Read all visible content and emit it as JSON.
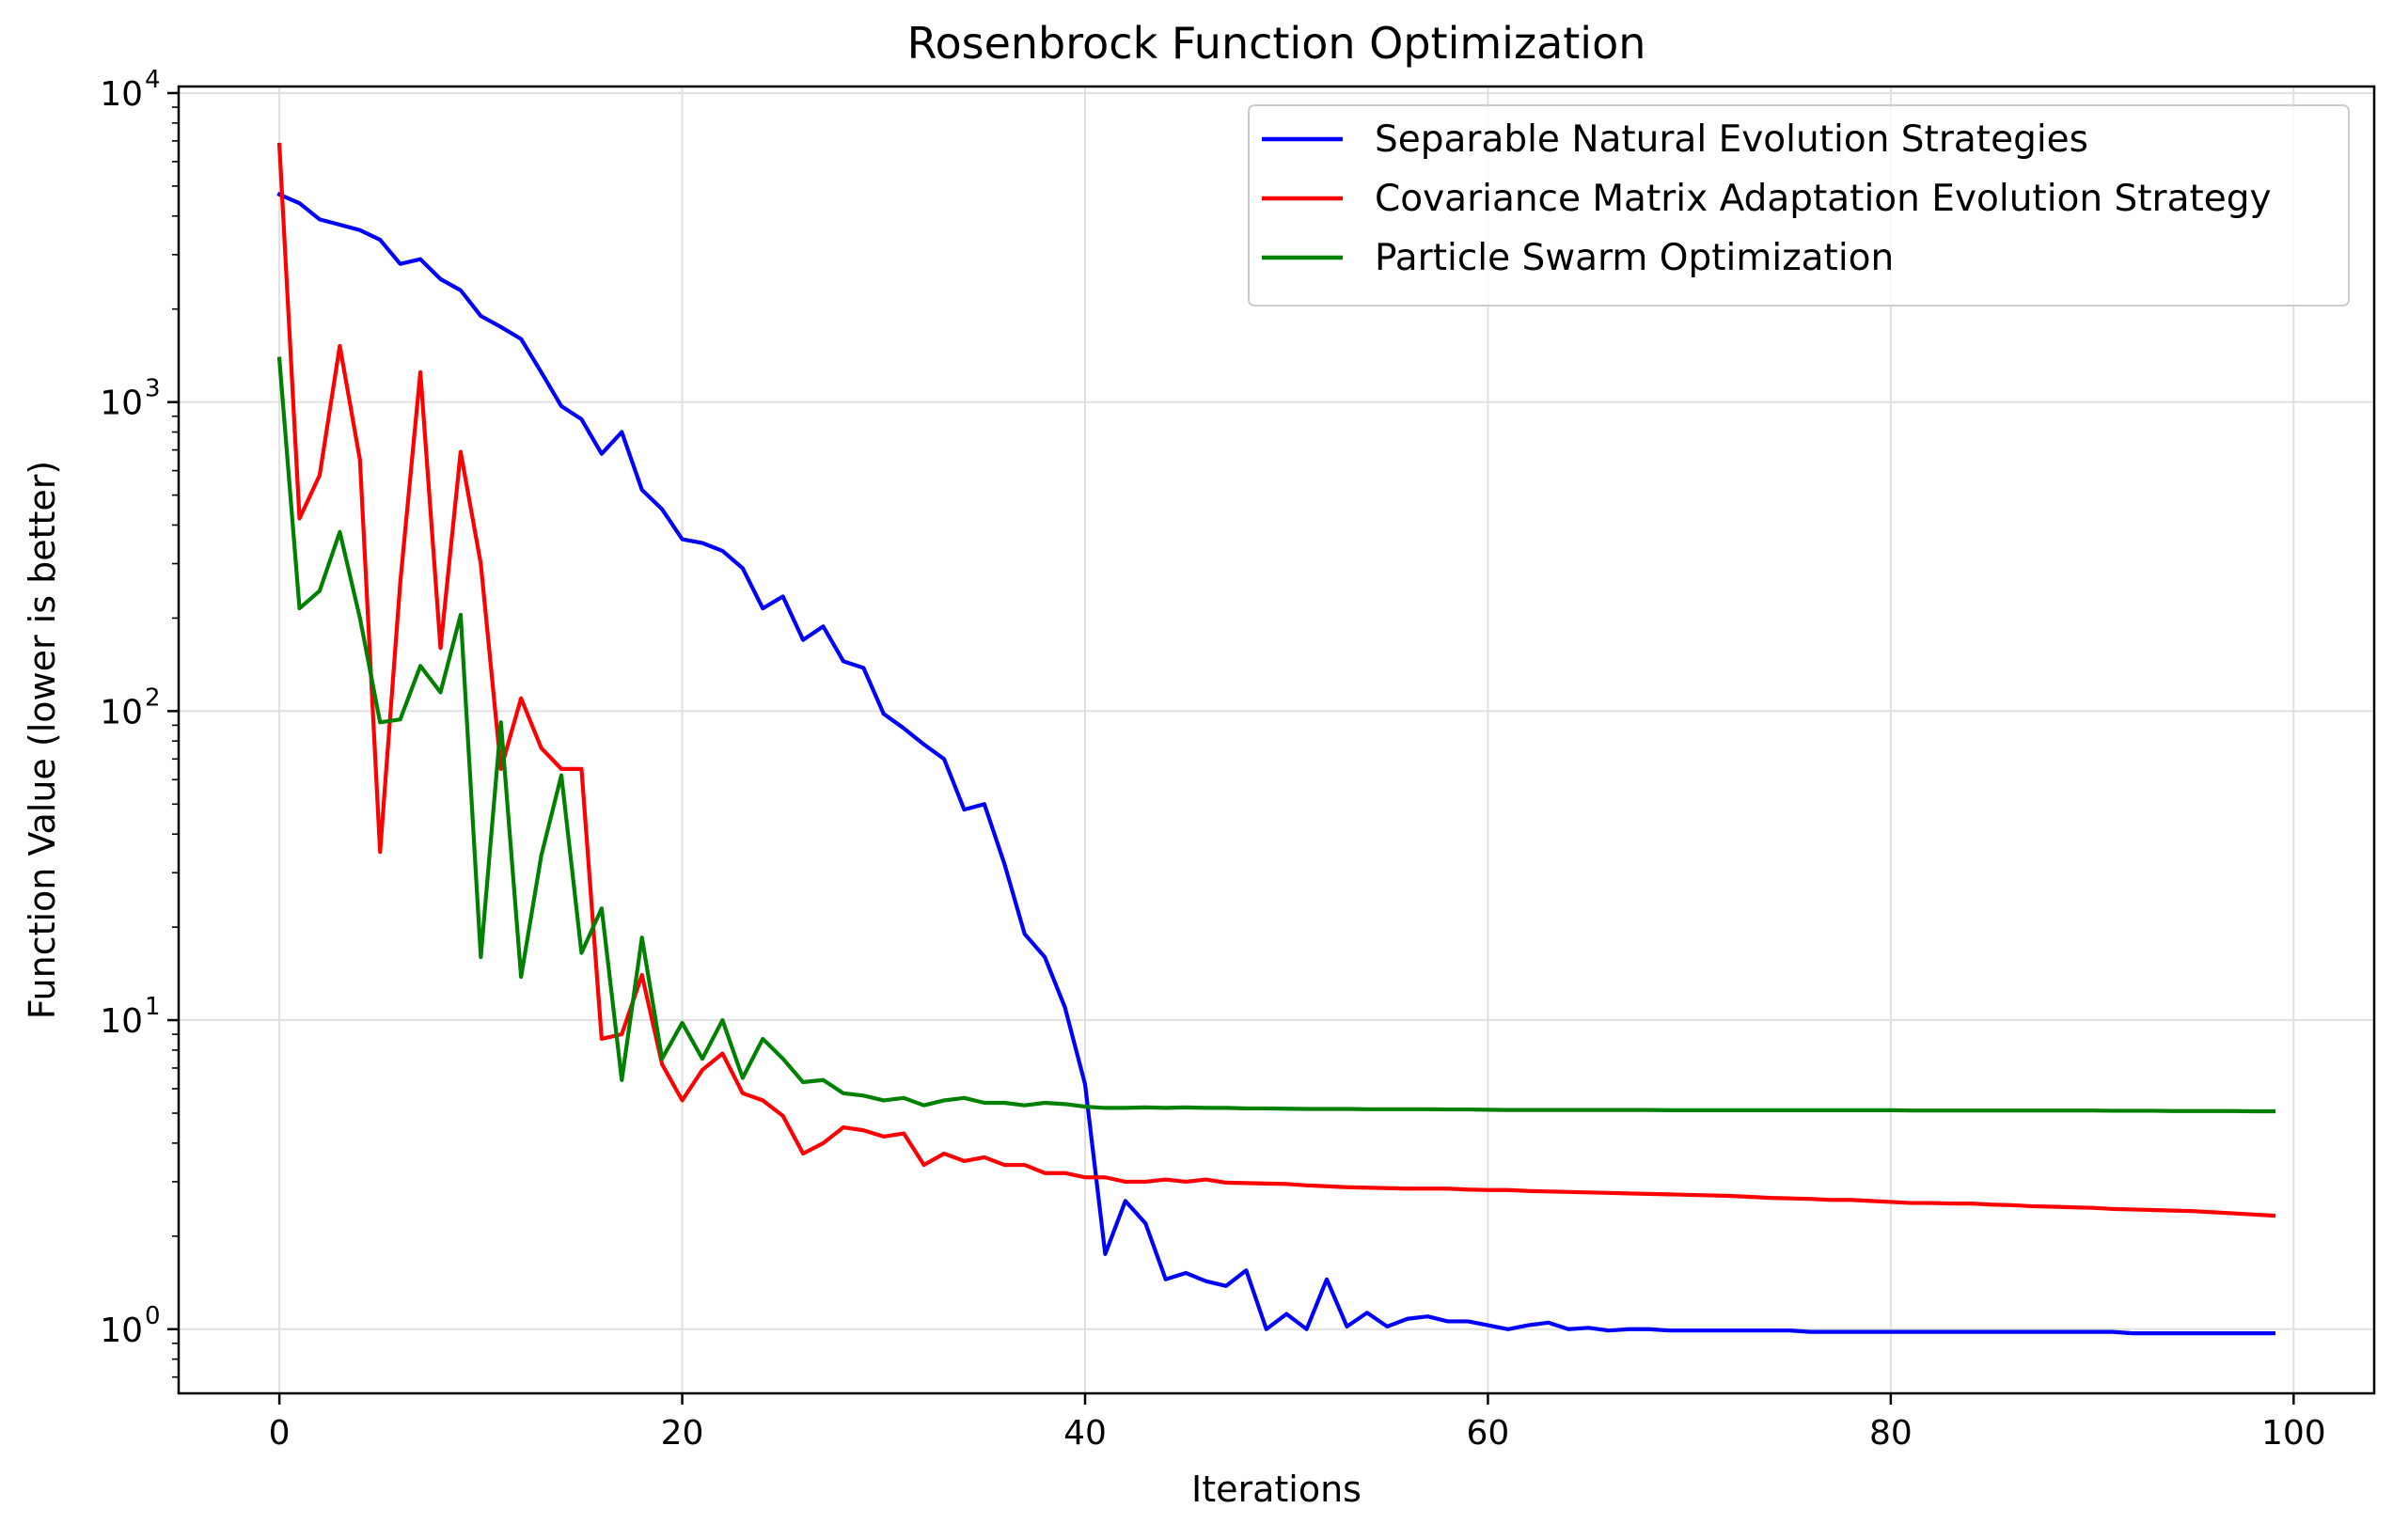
{
  "chart_data": {
    "type": "line",
    "title": "Rosenbrock Function Optimization",
    "xlabel": "Iterations",
    "ylabel": "Function Value (lower is better)",
    "xscale": "linear",
    "yscale": "log",
    "xlim": [
      -5,
      104
    ],
    "ylim": [
      0.62,
      10500
    ],
    "xticks": [
      0,
      20,
      40,
      60,
      80,
      100
    ],
    "xtick_labels": [
      "0",
      "20",
      "40",
      "60",
      "80",
      "100"
    ],
    "yticks": [
      1,
      10,
      100,
      1000,
      10000
    ],
    "ytick_labels": [
      {
        "base": "10",
        "exp": "0"
      },
      {
        "base": "10",
        "exp": "1"
      },
      {
        "base": "10",
        "exp": "2"
      },
      {
        "base": "10",
        "exp": "3"
      },
      {
        "base": "10",
        "exp": "4"
      }
    ],
    "grid": true,
    "legend_position": "top-right",
    "series": [
      {
        "name": "Separable Natural Evolution Strategies",
        "color": "#0000ff",
        "values": [
          4700,
          4400,
          3900,
          3750,
          3600,
          3350,
          2800,
          2900,
          2500,
          2300,
          1900,
          1750,
          1600,
          1250,
          970,
          880,
          680,
          800,
          520,
          450,
          360,
          350,
          330,
          290,
          215,
          235,
          170,
          188,
          145,
          138,
          98,
          88,
          78,
          70,
          48,
          50,
          32,
          19,
          16,
          11,
          6.2,
          1.75,
          2.6,
          2.2,
          1.45,
          1.52,
          1.43,
          1.38,
          1.55,
          1.0,
          1.12,
          1.0,
          1.45,
          1.02,
          1.13,
          1.02,
          1.08,
          1.1,
          1.06,
          1.06,
          1.03,
          1.0,
          1.03,
          1.05,
          1.0,
          1.01,
          0.99,
          1.0,
          1.0,
          0.99,
          0.99,
          0.99,
          0.99,
          0.99,
          0.99,
          0.99,
          0.98,
          0.98,
          0.98,
          0.98,
          0.98,
          0.98,
          0.98,
          0.98,
          0.98,
          0.98,
          0.98,
          0.98,
          0.98,
          0.98,
          0.98,
          0.98,
          0.97,
          0.97,
          0.97,
          0.97,
          0.97,
          0.97,
          0.97,
          0.97
        ]
      },
      {
        "name": "Covariance Matrix Adaptation Evolution Strategy",
        "color": "#ff0000",
        "values": [
          6800,
          420,
          580,
          1520,
          650,
          35,
          260,
          1250,
          160,
          690,
          300,
          65,
          110,
          76,
          65,
          65,
          8.7,
          9.0,
          14,
          7.2,
          5.5,
          6.9,
          7.8,
          5.8,
          5.5,
          4.9,
          3.7,
          4.0,
          4.5,
          4.4,
          4.2,
          4.3,
          3.4,
          3.7,
          3.5,
          3.6,
          3.4,
          3.4,
          3.2,
          3.2,
          3.1,
          3.1,
          3.0,
          3.0,
          3.05,
          3.0,
          3.05,
          2.98,
          2.97,
          2.96,
          2.95,
          2.92,
          2.9,
          2.88,
          2.87,
          2.86,
          2.85,
          2.85,
          2.85,
          2.83,
          2.82,
          2.82,
          2.8,
          2.79,
          2.78,
          2.77,
          2.76,
          2.75,
          2.74,
          2.73,
          2.72,
          2.71,
          2.7,
          2.68,
          2.66,
          2.65,
          2.64,
          2.62,
          2.62,
          2.6,
          2.58,
          2.56,
          2.56,
          2.55,
          2.55,
          2.53,
          2.52,
          2.5,
          2.49,
          2.48,
          2.47,
          2.45,
          2.44,
          2.43,
          2.42,
          2.41,
          2.39,
          2.37,
          2.35,
          2.33
        ]
      },
      {
        "name": "Particle Swarm Optimization",
        "color": "#008000",
        "values": [
          1380,
          215,
          245,
          380,
          200,
          92,
          94,
          140,
          115,
          205,
          16,
          92,
          13.8,
          34,
          62,
          16.5,
          23,
          6.4,
          18.5,
          7.5,
          9.8,
          7.5,
          10,
          6.5,
          8.7,
          7.5,
          6.3,
          6.4,
          5.8,
          5.7,
          5.5,
          5.6,
          5.3,
          5.5,
          5.6,
          5.4,
          5.4,
          5.3,
          5.4,
          5.35,
          5.25,
          5.2,
          5.2,
          5.22,
          5.2,
          5.22,
          5.2,
          5.2,
          5.18,
          5.18,
          5.17,
          5.16,
          5.16,
          5.16,
          5.15,
          5.15,
          5.15,
          5.15,
          5.14,
          5.14,
          5.13,
          5.12,
          5.12,
          5.12,
          5.12,
          5.12,
          5.12,
          5.12,
          5.12,
          5.11,
          5.11,
          5.11,
          5.11,
          5.11,
          5.11,
          5.11,
          5.11,
          5.11,
          5.11,
          5.11,
          5.11,
          5.1,
          5.1,
          5.1,
          5.1,
          5.1,
          5.1,
          5.1,
          5.1,
          5.1,
          5.1,
          5.09,
          5.09,
          5.09,
          5.08,
          5.08,
          5.08,
          5.08,
          5.07,
          5.07
        ]
      }
    ]
  }
}
